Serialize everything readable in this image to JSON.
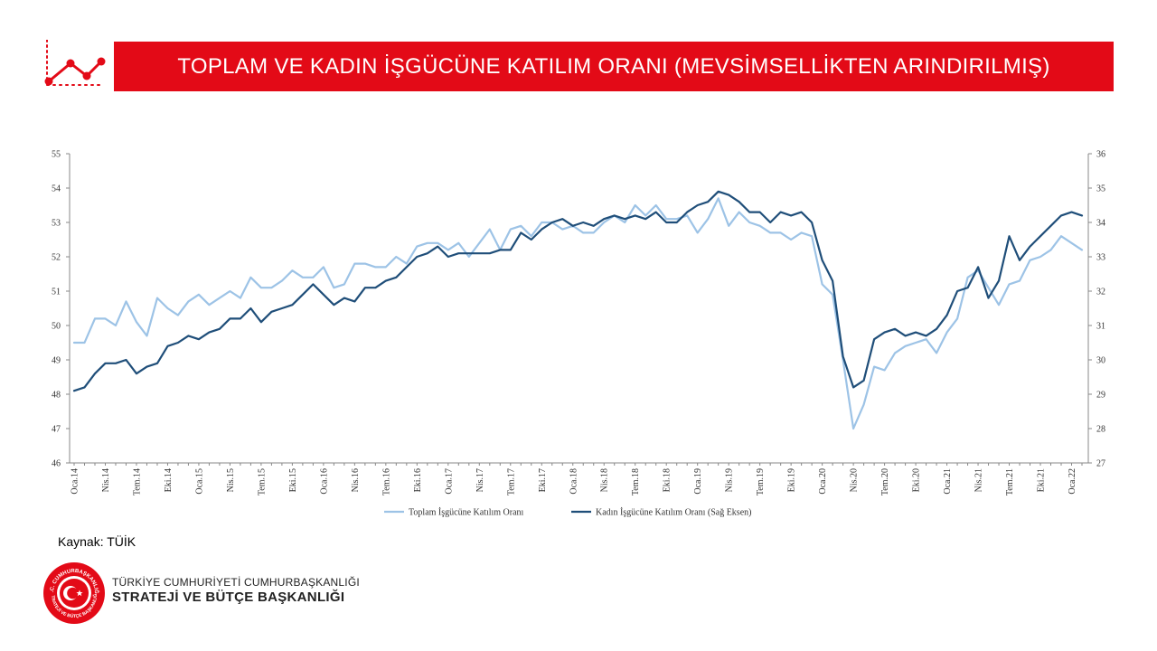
{
  "header": {
    "title": "TOPLAM VE KADIN İŞGÜCÜNE KATILIM ORANI (MEVSİMSELLİKTEN ARINDIRILMIŞ)",
    "icon": "line-chart-icon",
    "accent_color": "#e30a17"
  },
  "source": "Kaynak: TÜİK",
  "org": {
    "line1": "TÜRKİYE CUMHURİYETİ CUMHURBAŞKANLIĞI",
    "line2": "STRATEJİ VE BÜTÇE BAŞKANLIĞI",
    "logo_ring_top": "T.C. CUMHURBAŞKANLIĞI",
    "logo_ring_bottom": "STRATEJİ VE BÜTÇE BAŞKANLIĞI"
  },
  "chart_data": {
    "type": "line",
    "title": "",
    "xlabel": "",
    "ylabel": "",
    "y_left": {
      "lim": [
        46,
        55
      ],
      "ticks": [
        "46",
        "47",
        "48",
        "49",
        "50",
        "51",
        "52",
        "53",
        "54",
        "55"
      ]
    },
    "y_right": {
      "lim": [
        27,
        36
      ],
      "ticks": [
        "27",
        "28",
        "29",
        "30",
        "31",
        "32",
        "33",
        "34",
        "35",
        "36"
      ]
    },
    "grid": false,
    "legend_position": "bottom-center",
    "x_tick_labels": [
      "Oca.14",
      "Nis.14",
      "Tem.14",
      "Eki.14",
      "Oca.15",
      "Nis.15",
      "Tem.15",
      "Eki.15",
      "Oca.16",
      "Nis.16",
      "Tem.16",
      "Eki.16",
      "Oca.17",
      "Nis.17",
      "Tem.17",
      "Eki.17",
      "Oca.18",
      "Nis.18",
      "Tem.18",
      "Eki.18",
      "Oca.19",
      "Nis.19",
      "Tem.19",
      "Eki.19",
      "Oca.20",
      "Nis.20",
      "Tem.20",
      "Eki.20",
      "Oca.21",
      "Nis.21",
      "Tem.21",
      "Eki.21",
      "Oca.22"
    ],
    "x_start": "2014-01",
    "x_end": "2022-03",
    "series": [
      {
        "name": "Toplam İşgücüne Katılım Oranı",
        "axis": "left",
        "color": "#9dc3e6",
        "values": [
          49.5,
          49.5,
          50.2,
          50.2,
          50.0,
          50.7,
          50.1,
          49.7,
          50.8,
          50.5,
          50.3,
          50.7,
          50.9,
          50.6,
          50.8,
          51.0,
          50.8,
          51.4,
          51.1,
          51.1,
          51.3,
          51.6,
          51.4,
          51.4,
          51.7,
          51.1,
          51.2,
          51.8,
          51.8,
          51.7,
          51.7,
          52.0,
          51.8,
          52.3,
          52.4,
          52.4,
          52.2,
          52.4,
          52.0,
          52.4,
          52.8,
          52.2,
          52.8,
          52.9,
          52.6,
          53.0,
          53.0,
          52.8,
          52.9,
          52.7,
          52.7,
          53.0,
          53.2,
          53.0,
          53.5,
          53.2,
          53.5,
          53.1,
          53.1,
          53.2,
          52.7,
          53.1,
          53.7,
          52.9,
          53.3,
          53.0,
          52.9,
          52.7,
          52.7,
          52.5,
          52.7,
          52.6,
          51.2,
          50.9,
          49.0,
          47.0,
          47.7,
          48.8,
          48.7,
          49.2,
          49.4,
          49.5,
          49.6,
          49.2,
          49.8,
          50.2,
          51.4,
          51.6,
          51.1,
          50.6,
          51.2,
          51.3,
          51.9,
          52.0,
          52.2,
          52.6,
          52.4,
          52.2
        ]
      },
      {
        "name": "Kadın İşgücüne Katılım Oranı (Sağ Eksen)",
        "axis": "right",
        "color": "#1f4e79",
        "values": [
          29.1,
          29.2,
          29.6,
          29.9,
          29.9,
          30.0,
          29.6,
          29.8,
          29.9,
          30.4,
          30.5,
          30.7,
          30.6,
          30.8,
          30.9,
          31.2,
          31.2,
          31.5,
          31.1,
          31.4,
          31.5,
          31.6,
          31.9,
          32.2,
          31.9,
          31.6,
          31.8,
          31.7,
          32.1,
          32.1,
          32.3,
          32.4,
          32.7,
          33.0,
          33.1,
          33.3,
          33.0,
          33.1,
          33.1,
          33.1,
          33.1,
          33.2,
          33.2,
          33.7,
          33.5,
          33.8,
          34.0,
          34.1,
          33.9,
          34.0,
          33.9,
          34.1,
          34.2,
          34.1,
          34.2,
          34.1,
          34.3,
          34.0,
          34.0,
          34.3,
          34.5,
          34.6,
          34.9,
          34.8,
          34.6,
          34.3,
          34.3,
          34.0,
          34.3,
          34.2,
          34.3,
          34.0,
          32.9,
          32.3,
          30.1,
          29.2,
          29.4,
          30.6,
          30.8,
          30.9,
          30.7,
          30.8,
          30.7,
          30.9,
          31.3,
          32.0,
          32.1,
          32.7,
          31.8,
          32.3,
          33.6,
          32.9,
          33.3,
          33.6,
          33.9,
          34.2,
          34.3,
          34.2
        ]
      }
    ]
  }
}
